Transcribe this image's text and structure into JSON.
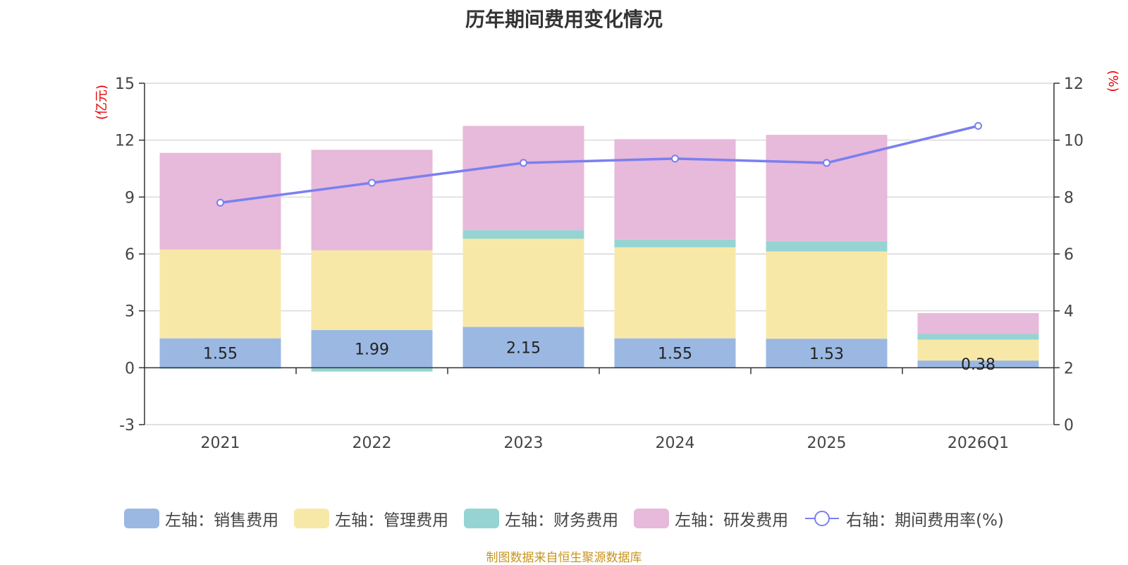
{
  "chart_data": {
    "type": "bar",
    "title": "历年期间费用变化情况",
    "categories": [
      "2021",
      "2022",
      "2023",
      "2024",
      "2025",
      "2026Q1"
    ],
    "left_axis": {
      "unit": "(亿元)",
      "ylim": [
        -3,
        15
      ],
      "ticks": [
        -3,
        0,
        3,
        6,
        9,
        12,
        15
      ]
    },
    "right_axis": {
      "unit": "(%)",
      "ylim": [
        0,
        12
      ],
      "ticks": [
        0,
        2,
        4,
        6,
        8,
        10,
        12
      ]
    },
    "series": [
      {
        "name": "左轴：销售费用",
        "color": "#9bb8e3",
        "axis": "left",
        "stack": true,
        "values": [
          1.55,
          1.99,
          2.15,
          1.55,
          1.53,
          0.38
        ],
        "labels": [
          "1.55",
          "1.99",
          "2.15",
          "1.55",
          "1.53",
          "0.38"
        ]
      },
      {
        "name": "左轴：管理费用",
        "color": "#f8e8a8",
        "axis": "left",
        "stack": true,
        "values": [
          4.68,
          4.2,
          4.65,
          4.8,
          4.6,
          1.1
        ]
      },
      {
        "name": "左轴：财务费用",
        "color": "#96d4d4",
        "axis": "left",
        "stack": true,
        "values": [
          -0.05,
          -0.2,
          0.45,
          0.4,
          0.55,
          0.3
        ]
      },
      {
        "name": "左轴：研发费用",
        "color": "#e7b9da",
        "axis": "left",
        "stack": true,
        "values": [
          5.1,
          5.3,
          5.5,
          5.3,
          5.6,
          1.1
        ]
      },
      {
        "name": "右轴：期间费用率(%)",
        "color": "#7b7ff0",
        "axis": "right",
        "type": "line",
        "values": [
          7.8,
          8.5,
          9.2,
          9.35,
          9.2,
          10.5
        ]
      }
    ]
  },
  "source_note": "制图数据来自恒生聚源数据库"
}
